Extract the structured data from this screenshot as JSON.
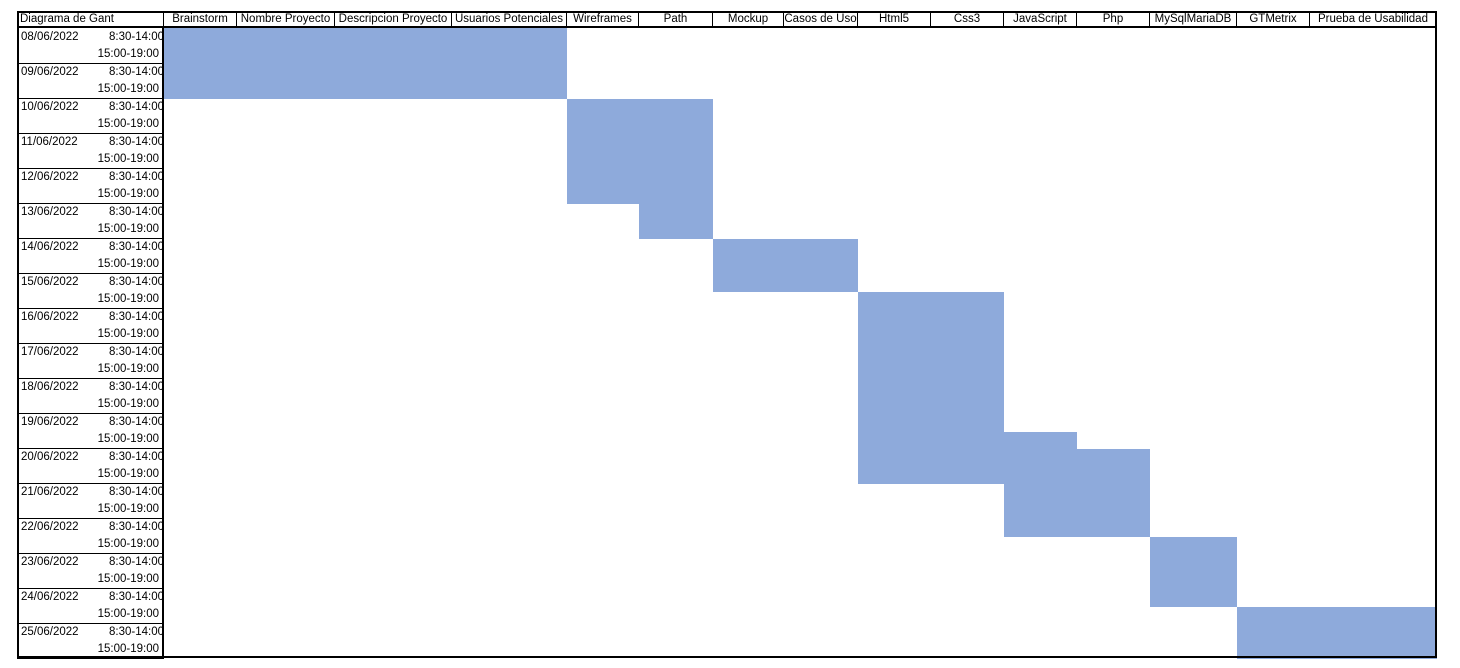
{
  "sheet": {
    "title": "Diagrama de Gant",
    "bar_color": "#8eaadb",
    "columns": [
      "Brainstorm",
      "Nombre Proyecto",
      "Descripcion Proyecto",
      "Usuarios Potenciales",
      "Wireframes",
      "Path",
      "Mockup",
      "Casos de Uso",
      "Html5",
      "Css3",
      "JavaScript",
      "Php",
      "MySqlMariaDB",
      "GTMetrix",
      "Prueba de Usabilidad"
    ],
    "rows": [
      {
        "date": "08/06/2022",
        "morning": "8:30-14:00",
        "afternoon": "15:00-19:00"
      },
      {
        "date": "09/06/2022",
        "morning": "8:30-14:00",
        "afternoon": "15:00-19:00"
      },
      {
        "date": "10/06/2022",
        "morning": "8:30-14:00",
        "afternoon": "15:00-19:00"
      },
      {
        "date": "11/06/2022",
        "morning": "8:30-14:00",
        "afternoon": "15:00-19:00"
      },
      {
        "date": "12/06/2022",
        "morning": "8:30-14:00",
        "afternoon": "15:00-19:00"
      },
      {
        "date": "13/06/2022",
        "morning": "8:30-14:00",
        "afternoon": "15:00-19:00"
      },
      {
        "date": "14/06/2022",
        "morning": "8:30-14:00",
        "afternoon": "15:00-19:00"
      },
      {
        "date": "15/06/2022",
        "morning": "8:30-14:00",
        "afternoon": "15:00-19:00"
      },
      {
        "date": "16/06/2022",
        "morning": "8:30-14:00",
        "afternoon": "15:00-19:00"
      },
      {
        "date": "17/06/2022",
        "morning": "8:30-14:00",
        "afternoon": "15:00-19:00"
      },
      {
        "date": "18/06/2022",
        "morning": "8:30-14:00",
        "afternoon": "15:00-19:00"
      },
      {
        "date": "19/06/2022",
        "morning": "8:30-14:00",
        "afternoon": "15:00-19:00"
      },
      {
        "date": "20/06/2022",
        "morning": "8:30-14:00",
        "afternoon": "15:00-19:00"
      },
      {
        "date": "21/06/2022",
        "morning": "8:30-14:00",
        "afternoon": "15:00-19:00"
      },
      {
        "date": "22/06/2022",
        "morning": "8:30-14:00",
        "afternoon": "15:00-19:00"
      },
      {
        "date": "23/06/2022",
        "morning": "8:30-14:00",
        "afternoon": "15:00-19:00"
      },
      {
        "date": "24/06/2022",
        "morning": "8:30-14:00",
        "afternoon": "15:00-19:00"
      },
      {
        "date": "25/06/2022",
        "morning": "8:30-14:00",
        "afternoon": "15:00-19:00"
      }
    ],
    "tasks": [
      {
        "from_col": 0,
        "to_col": 3,
        "start": "08/06/2022 8:30-14:00",
        "end": "09/06/2022 15:00-19:00"
      },
      {
        "from_col": 4,
        "to_col": 5,
        "start": "10/06/2022 8:30-14:00",
        "end": "12/06/2022 15:00-19:00"
      },
      {
        "from_col": 5,
        "to_col": 5,
        "start": "13/06/2022 8:30-14:00",
        "end": "13/06/2022 15:00-19:00"
      },
      {
        "from_col": 6,
        "to_col": 7,
        "start": "14/06/2022 8:30-14:00",
        "end": "15/06/2022 8:30-14:00"
      },
      {
        "from_col": 8,
        "to_col": 9,
        "start": "15/06/2022 15:00-19:00",
        "end": "19/06/2022 8:30-14:00"
      },
      {
        "from_col": 8,
        "to_col": 10,
        "start": "19/06/2022 15:00-19:00",
        "end": "19/06/2022 15:00-19:00"
      },
      {
        "from_col": 8,
        "to_col": 11,
        "start": "20/06/2022 8:30-14:00",
        "end": "20/06/2022 15:00-19:00"
      },
      {
        "from_col": 10,
        "to_col": 11,
        "start": "21/06/2022 8:30-14:00",
        "end": "22/06/2022 8:30-14:00"
      },
      {
        "from_col": 12,
        "to_col": 12,
        "start": "22/06/2022 15:00-19:00",
        "end": "24/06/2022 8:30-14:00"
      },
      {
        "from_col": 13,
        "to_col": 14,
        "start": "24/06/2022 15:00-19:00",
        "end": "25/06/2022 15:00-19:00"
      }
    ]
  }
}
